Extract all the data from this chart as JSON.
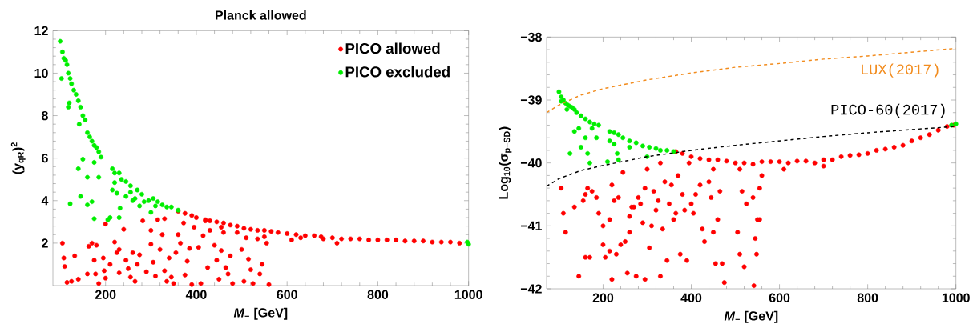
{
  "chart_data": [
    {
      "type": "scatter",
      "title": "Planck allowed",
      "xlabel": "*M*$_{−}$ [GeV]",
      "ylabel": "(y$_{qR}$)$^{2}$",
      "xlim": [
        84,
        1000
      ],
      "ylim": [
        0,
        12
      ],
      "xticks": [
        200,
        400,
        600,
        800,
        1000
      ],
      "yticks": [
        2,
        4,
        6,
        8,
        10,
        12
      ],
      "legend": "top right",
      "marker": "circle",
      "series": [
        {
          "name": "PICO allowed",
          "color": "#ff0000",
          "x": [
            360,
            375,
            390,
            400,
            420,
            430,
            445,
            460,
            475,
            490,
            505,
            520,
            535,
            550,
            565,
            580,
            600,
            620,
            640,
            660,
            680,
            700,
            720,
            740,
            760,
            780,
            800,
            820,
            840,
            860,
            880,
            900,
            920,
            940,
            960,
            980,
            710,
            610,
            630,
            675,
            105,
            108,
            110,
            115,
            125,
            132,
            140,
            160,
            163,
            170,
            175,
            178,
            180,
            185,
            195,
            197,
            200,
            200,
            210,
            220,
            225,
            230,
            230,
            240,
            245,
            250,
            255,
            260,
            265,
            270,
            275,
            282,
            290,
            300,
            300,
            305,
            310,
            315,
            320,
            325,
            330,
            335,
            340,
            345,
            350,
            355,
            360,
            365,
            372,
            375,
            380,
            385,
            390,
            395,
            405,
            410,
            415,
            425,
            430,
            440,
            445,
            450,
            455,
            460,
            465,
            470,
            475,
            480,
            490,
            500,
            505,
            510,
            515,
            520,
            525,
            535,
            540,
            545,
            550,
            555,
            560,
            455,
            420,
            330
          ],
          "values": [
            3.5,
            3.4,
            3.3,
            3.2,
            3.1,
            3.05,
            3.0,
            2.95,
            2.85,
            2.8,
            2.7,
            2.65,
            2.6,
            2.6,
            2.55,
            2.5,
            2.45,
            2.4,
            2.35,
            2.35,
            2.2,
            2.25,
            2.2,
            2.2,
            2.2,
            2.15,
            2.15,
            2.15,
            2.15,
            2.1,
            2.1,
            2.1,
            2.05,
            2.05,
            2.05,
            2.0,
            2.0,
            2.15,
            2.25,
            2.3,
            2.0,
            1.3,
            0.9,
            0.15,
            0.2,
            1.4,
            0.3,
            0.55,
            1.85,
            2.0,
            1.2,
            0.55,
            1.9,
            0.1,
            1.3,
            0.7,
            0.35,
            2.9,
            1.0,
            2.05,
            1.55,
            0.6,
            1.7,
            2.65,
            1.2,
            0.8,
            0.4,
            1.55,
            0.2,
            1.0,
            1.45,
            3.05,
            0.65,
            1.95,
            2.6,
            1.1,
            0.45,
            3.1,
            1.7,
            2.4,
            0.7,
            0.2,
            1.3,
            0.4,
            0.1,
            1.55,
            2.4,
            2.0,
            2.95,
            0.5,
            1.15,
            1.75,
            0.05,
            2.75,
            1.8,
            0.1,
            2.35,
            0.85,
            2.6,
            1.9,
            1.2,
            0.3,
            1.65,
            2.5,
            0.85,
            0.55,
            1.4,
            0.1,
            2.5,
            1.7,
            0.2,
            2.25,
            1.25,
            0.75,
            0.1,
            2.2,
            0.55,
            1.0,
            2.3,
            2.0,
            0.05,
            2.75,
            3.05,
            3.15
          ]
        },
        {
          "name": "PICO excluded",
          "color": "#00ee00",
          "x": [
            100,
            105,
            108,
            112,
            115,
            118,
            122,
            125,
            130,
            135,
            140,
            145,
            150,
            155,
            160,
            165,
            170,
            175,
            180,
            185,
            190,
            215,
            220,
            230,
            235,
            245,
            255,
            270,
            280,
            295,
            305,
            315,
            325,
            335,
            345,
            360,
            103,
            118,
            120,
            142,
            122,
            145,
            150,
            140,
            160,
            160,
            170,
            175,
            175,
            185,
            205,
            210,
            215,
            220,
            225,
            230,
            232,
            245,
            255,
            260,
            265,
            275,
            285,
            300,
            310,
            997,
            1000
          ],
          "values": [
            11.5,
            11.0,
            10.7,
            10.6,
            10.4,
            10.0,
            9.75,
            9.5,
            9.2,
            9.0,
            8.7,
            8.4,
            8.0,
            7.8,
            7.2,
            7.0,
            6.8,
            6.6,
            6.5,
            6.3,
            6.05,
            5.5,
            5.3,
            5.3,
            5.0,
            4.9,
            4.7,
            4.5,
            4.3,
            4.0,
            4.1,
            3.95,
            3.8,
            3.7,
            3.7,
            3.55,
            9.75,
            8.4,
            8.6,
            7.6,
            3.85,
            4.2,
            5.95,
            5.5,
            5.1,
            3.8,
            3.95,
            3.15,
            5.8,
            5.1,
            3.1,
            3.2,
            4.5,
            4.85,
            4.35,
            3.2,
            3.65,
            4.2,
            4.4,
            4.0,
            4.1,
            3.75,
            3.95,
            3.45,
            3.75,
            2.05,
            1.95
          ]
        }
      ]
    },
    {
      "type": "scatter",
      "xlabel": "*M*$_{−}$ [GeV]",
      "ylabel": "Log$_{10}$(σ$_{p−SD}$)",
      "xlim": [
        72,
        1000
      ],
      "ylim": [
        -42,
        -38
      ],
      "xticks": [
        200,
        400,
        600,
        800,
        1000
      ],
      "yticks": [
        {
          "value": -42,
          "label": "−42"
        },
        {
          "value": -41,
          "label": "−41"
        },
        {
          "value": -40,
          "label": "−40"
        },
        {
          "value": -39,
          "label": "−39"
        },
        {
          "value": -38,
          "label": "−38"
        }
      ],
      "marker": "circle",
      "line_style": "dashed",
      "series": [
        {
          "color": "#ff0000",
          "x": [
            365,
            380,
            400,
            420,
            440,
            460,
            480,
            500,
            520,
            540,
            560,
            580,
            600,
            620,
            640,
            660,
            680,
            700,
            720,
            740,
            760,
            780,
            800,
            820,
            840,
            860,
            880,
            900,
            920,
            940,
            960,
            980,
            995,
            610,
            700,
            510,
            105,
            110,
            115,
            135,
            145,
            155,
            160,
            160,
            165,
            170,
            175,
            185,
            190,
            200,
            200,
            205,
            215,
            215,
            220,
            220,
            225,
            230,
            235,
            240,
            245,
            250,
            255,
            260,
            260,
            265,
            270,
            275,
            280,
            285,
            290,
            295,
            295,
            300,
            305,
            310,
            315,
            320,
            325,
            330,
            335,
            340,
            345,
            350,
            355,
            360,
            365,
            370,
            375,
            380,
            385,
            390,
            400,
            405,
            410,
            420,
            425,
            430,
            440,
            445,
            450,
            455,
            460,
            465,
            470,
            475,
            505,
            510,
            515,
            520,
            525,
            540,
            542,
            545,
            548,
            550,
            555,
            560,
            555,
            450,
            395,
            330
          ],
          "values": [
            -39.82,
            -39.85,
            -39.9,
            -39.93,
            -39.95,
            -39.95,
            -39.97,
            -40.0,
            -40.0,
            -40.02,
            -39.98,
            -39.98,
            -39.98,
            -40.0,
            -39.97,
            -39.97,
            -40.0,
            -39.95,
            -39.95,
            -39.9,
            -39.88,
            -39.87,
            -39.85,
            -39.8,
            -39.78,
            -39.75,
            -39.72,
            -39.65,
            -39.6,
            -39.55,
            -39.48,
            -39.42,
            -39.4,
            -40.1,
            -40.05,
            -40.1,
            -40.4,
            -40.8,
            -41.1,
            -40.7,
            -41.8,
            -40.6,
            -40.5,
            -41.5,
            -40.4,
            -41.5,
            -40.45,
            -40.55,
            -40.8,
            -41.0,
            -41.3,
            -41.5,
            -41.4,
            -40.9,
            -40.35,
            -41.85,
            -40.6,
            -41.45,
            -40.55,
            -41.3,
            -40.15,
            -41.25,
            -41.75,
            -40.85,
            -41.1,
            -40.7,
            -40.7,
            -41.8,
            -40.55,
            -40.65,
            -40.95,
            -40.4,
            -41.85,
            -40.1,
            -41.35,
            -41.0,
            -40.45,
            -40.75,
            -40.6,
            -41.8,
            -41.05,
            -40.3,
            -41.55,
            -40.65,
            -40.35,
            -40.9,
            -40.8,
            -40.2,
            -41.45,
            -40.5,
            -40.75,
            -41.55,
            -40.65,
            -40.8,
            -40.5,
            -40.35,
            -41.05,
            -41.25,
            -40.3,
            -40.55,
            -41.1,
            -41.6,
            -40.9,
            -40.45,
            -41.6,
            -41.9,
            -41.1,
            -41.45,
            -40.45,
            -41.65,
            -40.65,
            -40.55,
            -41.95,
            -41.2,
            -41.45,
            -40.9,
            -40.4,
            -40.2,
            -40.9,
            -40.1,
            -40.0,
            -40.0
          ]
        },
        {
          "color": "#00ee00",
          "x": [
            100,
            105,
            110,
            115,
            120,
            125,
            130,
            135,
            140,
            150,
            160,
            170,
            180,
            190,
            215,
            225,
            235,
            245,
            260,
            275,
            290,
            305,
            320,
            330,
            345,
            360,
            105,
            118,
            125,
            135,
            145,
            150,
            160,
            165,
            170,
            175,
            185,
            210,
            215,
            225,
            232,
            235,
            260,
            300,
            990,
            1000
          ],
          "values": [
            -38.87,
            -38.95,
            -39.0,
            -39.05,
            -39.08,
            -39.1,
            -39.12,
            -39.15,
            -39.2,
            -39.25,
            -39.3,
            -39.35,
            -39.38,
            -39.4,
            -39.5,
            -39.52,
            -39.55,
            -39.6,
            -39.65,
            -39.68,
            -39.73,
            -39.75,
            -39.77,
            -39.8,
            -39.8,
            -39.82,
            -39.02,
            -39.15,
            -39.85,
            -39.5,
            -39.45,
            -39.75,
            -39.6,
            -39.85,
            -40.0,
            -39.45,
            -39.6,
            -39.98,
            -39.65,
            -39.7,
            -39.85,
            -39.95,
            -39.75,
            -39.9,
            -39.4,
            -39.38
          ]
        },
        {
          "type": "line",
          "marker": "none",
          "name": "LUX(2017)",
          "color": "#f28c1e",
          "x": [
            72,
            100,
            150,
            200,
            250,
            300,
            400,
            500,
            600,
            700,
            800,
            900,
            1000
          ],
          "values": [
            -39.2,
            -39.08,
            -38.92,
            -38.82,
            -38.75,
            -38.68,
            -38.57,
            -38.48,
            -38.42,
            -38.35,
            -38.3,
            -38.24,
            -38.18
          ]
        },
        {
          "type": "line",
          "marker": "none",
          "name": "PICO-60(2017)",
          "color": "#000000",
          "x": [
            72,
            100,
            150,
            200,
            250,
            300,
            400,
            500,
            600,
            700,
            800,
            900,
            1000
          ],
          "values": [
            -40.37,
            -40.25,
            -40.12,
            -40.04,
            -39.97,
            -39.9,
            -39.8,
            -39.72,
            -39.65,
            -39.58,
            -39.52,
            -39.47,
            -39.42
          ]
        }
      ]
    }
  ]
}
